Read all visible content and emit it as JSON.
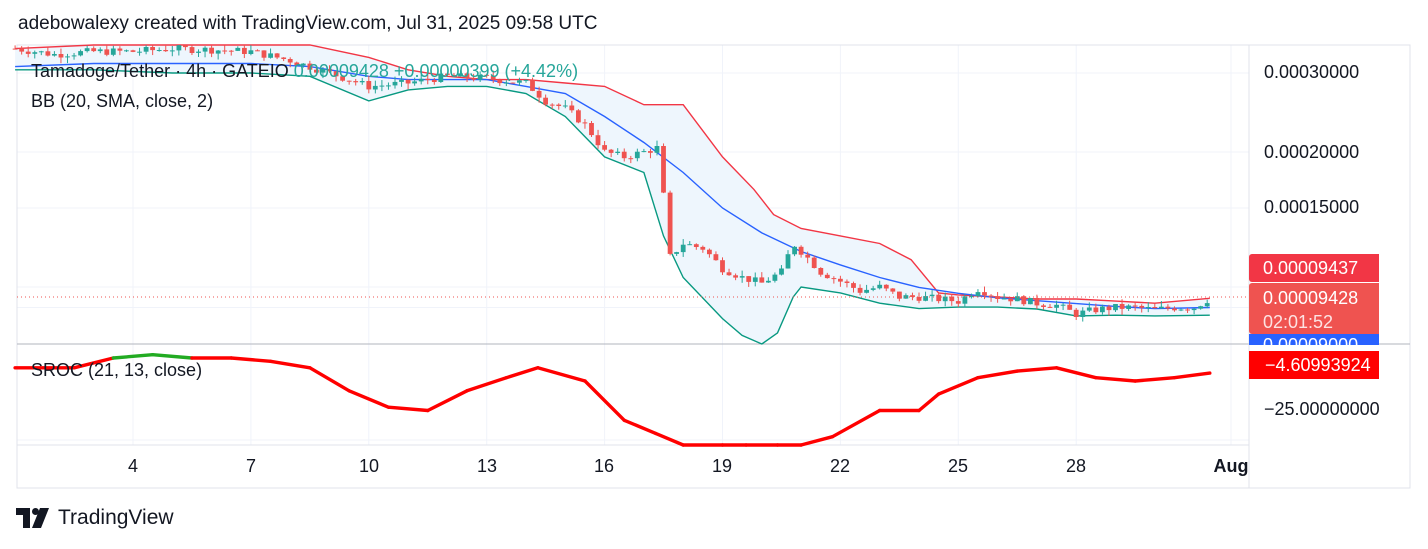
{
  "header": {
    "attribution": "adebowalexy created with TradingView.com, Jul 31, 2025 09:58 UTC"
  },
  "legend": {
    "symbol": "Tamadoge/Tether · 4h · GATEIO",
    "price": "0.00009428",
    "change": "+0.00000399 (+4.42%)",
    "bb": "BB (20, SMA, close, 2)",
    "sroc": "SROC (21, 13, close)"
  },
  "price_axis": {
    "labels": [
      "0.00030000",
      "0.00020000",
      "0.00015000"
    ],
    "badge_upper": "0.00009437",
    "badge_price": "0.00009428",
    "badge_countdown": "02:01:52",
    "badge_basis": "0.00009000"
  },
  "sroc_axis": {
    "badge_value": "−4.60993924",
    "labels": [
      "−25.00000000"
    ]
  },
  "time_axis": {
    "ticks": [
      "4",
      "7",
      "10",
      "13",
      "16",
      "19",
      "22",
      "25",
      "28",
      "Aug"
    ]
  },
  "footer": {
    "brand": "TradingView"
  },
  "colors": {
    "candle_up": "#26a69a",
    "candle_down": "#ef5350",
    "bb_upper": "#f23645",
    "bb_basis": "#2962ff",
    "bb_lower": "#089981",
    "bb_fill": "#eef6fd",
    "sroc_down": "#ff0000",
    "sroc_up": "#22ab22"
  },
  "chart_data": [
    {
      "type": "line",
      "title": "Tamadoge/Tether · 4h · GATEIO",
      "x_unit": "day of July 2025",
      "x_ticks": [
        "4",
        "7",
        "10",
        "13",
        "16",
        "19",
        "22",
        "25",
        "28",
        "Aug"
      ],
      "y_scale": "log",
      "y_ticks": [
        0.0003,
        0.0002,
        0.00015
      ],
      "close_last": 9.428e-05,
      "series": [
        {
          "name": "BB upper",
          "x": [
            1,
            3,
            5,
            7,
            8.5,
            10,
            11,
            12,
            13,
            14,
            15,
            16,
            17,
            18,
            19,
            19.8,
            20.3,
            21,
            22,
            23,
            23.8,
            24.5,
            25,
            26,
            27,
            28,
            29,
            30,
            31.4
          ],
          "y": [
            0.00034,
            0.00036,
            0.000355,
            0.00036,
            0.00035,
            0.000325,
            0.000305,
            0.000295,
            0.00029,
            0.00029,
            0.000285,
            0.00028,
            0.000255,
            0.000255,
            0.000195,
            0.000165,
            0.000145,
            0.000135,
            0.00013,
            0.000125,
            0.000115,
            9.7e-05,
            9.6e-05,
            9.5e-05,
            9.4e-05,
            9.4e-05,
            9.3e-05,
            9.2e-05,
            9.437e-05
          ]
        },
        {
          "name": "BB basis",
          "x": [
            1,
            3,
            5,
            7,
            8.5,
            10,
            11,
            12,
            13,
            14,
            15,
            16,
            17,
            18,
            19,
            20,
            21,
            22,
            23,
            24,
            25,
            26,
            27,
            28,
            29,
            30,
            31.4
          ],
          "y": [
            0.00031,
            0.000315,
            0.000315,
            0.000315,
            0.00031,
            0.000295,
            0.00029,
            0.00029,
            0.00029,
            0.00028,
            0.00027,
            0.00024,
            0.00021,
            0.00018,
            0.00015,
            0.000132,
            0.00012,
            0.000112,
            0.000105,
            9.98e-05,
            9.68e-05,
            9.46e-05,
            9.32e-05,
            9.18e-05,
            9.05e-05,
            8.95e-05,
            9e-05
          ]
        },
        {
          "name": "BB lower",
          "x": [
            1,
            3,
            5,
            7,
            8.5,
            10,
            11,
            12,
            13,
            14,
            15,
            16,
            17,
            17.5,
            18,
            19,
            19.5,
            20,
            20.4,
            20.8,
            21,
            22,
            23,
            24,
            25,
            26,
            27,
            28,
            29,
            30,
            31.4
          ],
          "y": [
            0.000305,
            0.000305,
            0.0003,
            0.0003,
            0.000295,
            0.00026,
            0.000275,
            0.00028,
            0.00028,
            0.00027,
            0.00024,
            0.000195,
            0.00018,
            0.00013,
            0.000105,
            8.5e-05,
            7.8e-05,
            7.4e-05,
            7.9e-05,
            9.5e-05,
            0.0001,
            9.7e-05,
            9.2e-05,
            8.95e-05,
            9.02e-05,
            9.02e-05,
            8.93e-05,
            8.62e-05,
            8.65e-05,
            8.62e-05,
            8.65e-05
          ]
        },
        {
          "name": "Close",
          "x": [
            1,
            2,
            3,
            4,
            5,
            6,
            7,
            8,
            9,
            10,
            11,
            12,
            13,
            14,
            14.5,
            15,
            15.5,
            16,
            16.5,
            17,
            17.4,
            17.6,
            18,
            18.5,
            19,
            19.5,
            20,
            20.5,
            20.8,
            21.5,
            22,
            22.5,
            23,
            23.5,
            24,
            24.5,
            25,
            25.5,
            26,
            26.5,
            27,
            27.5,
            28,
            28.5,
            29,
            29.5,
            30,
            30.5,
            31,
            31.4
          ],
          "y": [
            0.00034,
            0.00033,
            0.000335,
            0.000335,
            0.00034,
            0.000338,
            0.000335,
            0.00032,
            0.0003,
            0.00028,
            0.000285,
            0.000295,
            0.000292,
            0.000285,
            0.00026,
            0.00025,
            0.00023,
            0.0002,
            0.000195,
            0.0002,
            0.000205,
            0.000115,
            0.000125,
            0.000122,
            0.00011,
            0.000105,
            0.000102,
            0.000108,
            0.000125,
            0.000108,
            0.000103,
            9.8e-05,
            0.0001,
            9.5e-05,
            9.5e-05,
            9.4e-05,
            9.3e-05,
            9.9e-05,
            9.5e-05,
            9.4e-05,
            9.2e-05,
            9.1e-05,
            8.7e-05,
            8.9e-05,
            9e-05,
            9e-05,
            8.9e-05,
            9e-05,
            9e-05,
            9.428e-05
          ]
        }
      ]
    },
    {
      "type": "line",
      "title": "SROC (21, 13, close)",
      "x_unit": "day of July 2025",
      "y_ticks": [
        -25
      ],
      "last_value": -4.60993924,
      "series": [
        {
          "name": "SROC",
          "x": [
            1,
            2.5,
            3.5,
            4.5,
            5.5,
            6.5,
            7.5,
            8.5,
            9.5,
            10.5,
            11.5,
            12.5,
            13.5,
            14.3,
            15.5,
            16.5,
            17.3,
            18,
            19,
            19.6,
            20.4,
            21,
            21.8,
            23,
            24,
            24.5,
            25.5,
            26.5,
            27.5,
            28.5,
            29.5,
            30.5,
            31.4
          ],
          "y": [
            -3,
            -3,
            0,
            1,
            0,
            0,
            -1,
            -3,
            -10,
            -15,
            -16,
            -10,
            -6,
            -3,
            -7,
            -19,
            -23,
            -31,
            -36,
            -50,
            -45,
            -33,
            -24,
            -16,
            -16,
            -11,
            -6,
            -4,
            -3,
            -6,
            -7,
            -6,
            -4.61
          ]
        }
      ]
    }
  ]
}
